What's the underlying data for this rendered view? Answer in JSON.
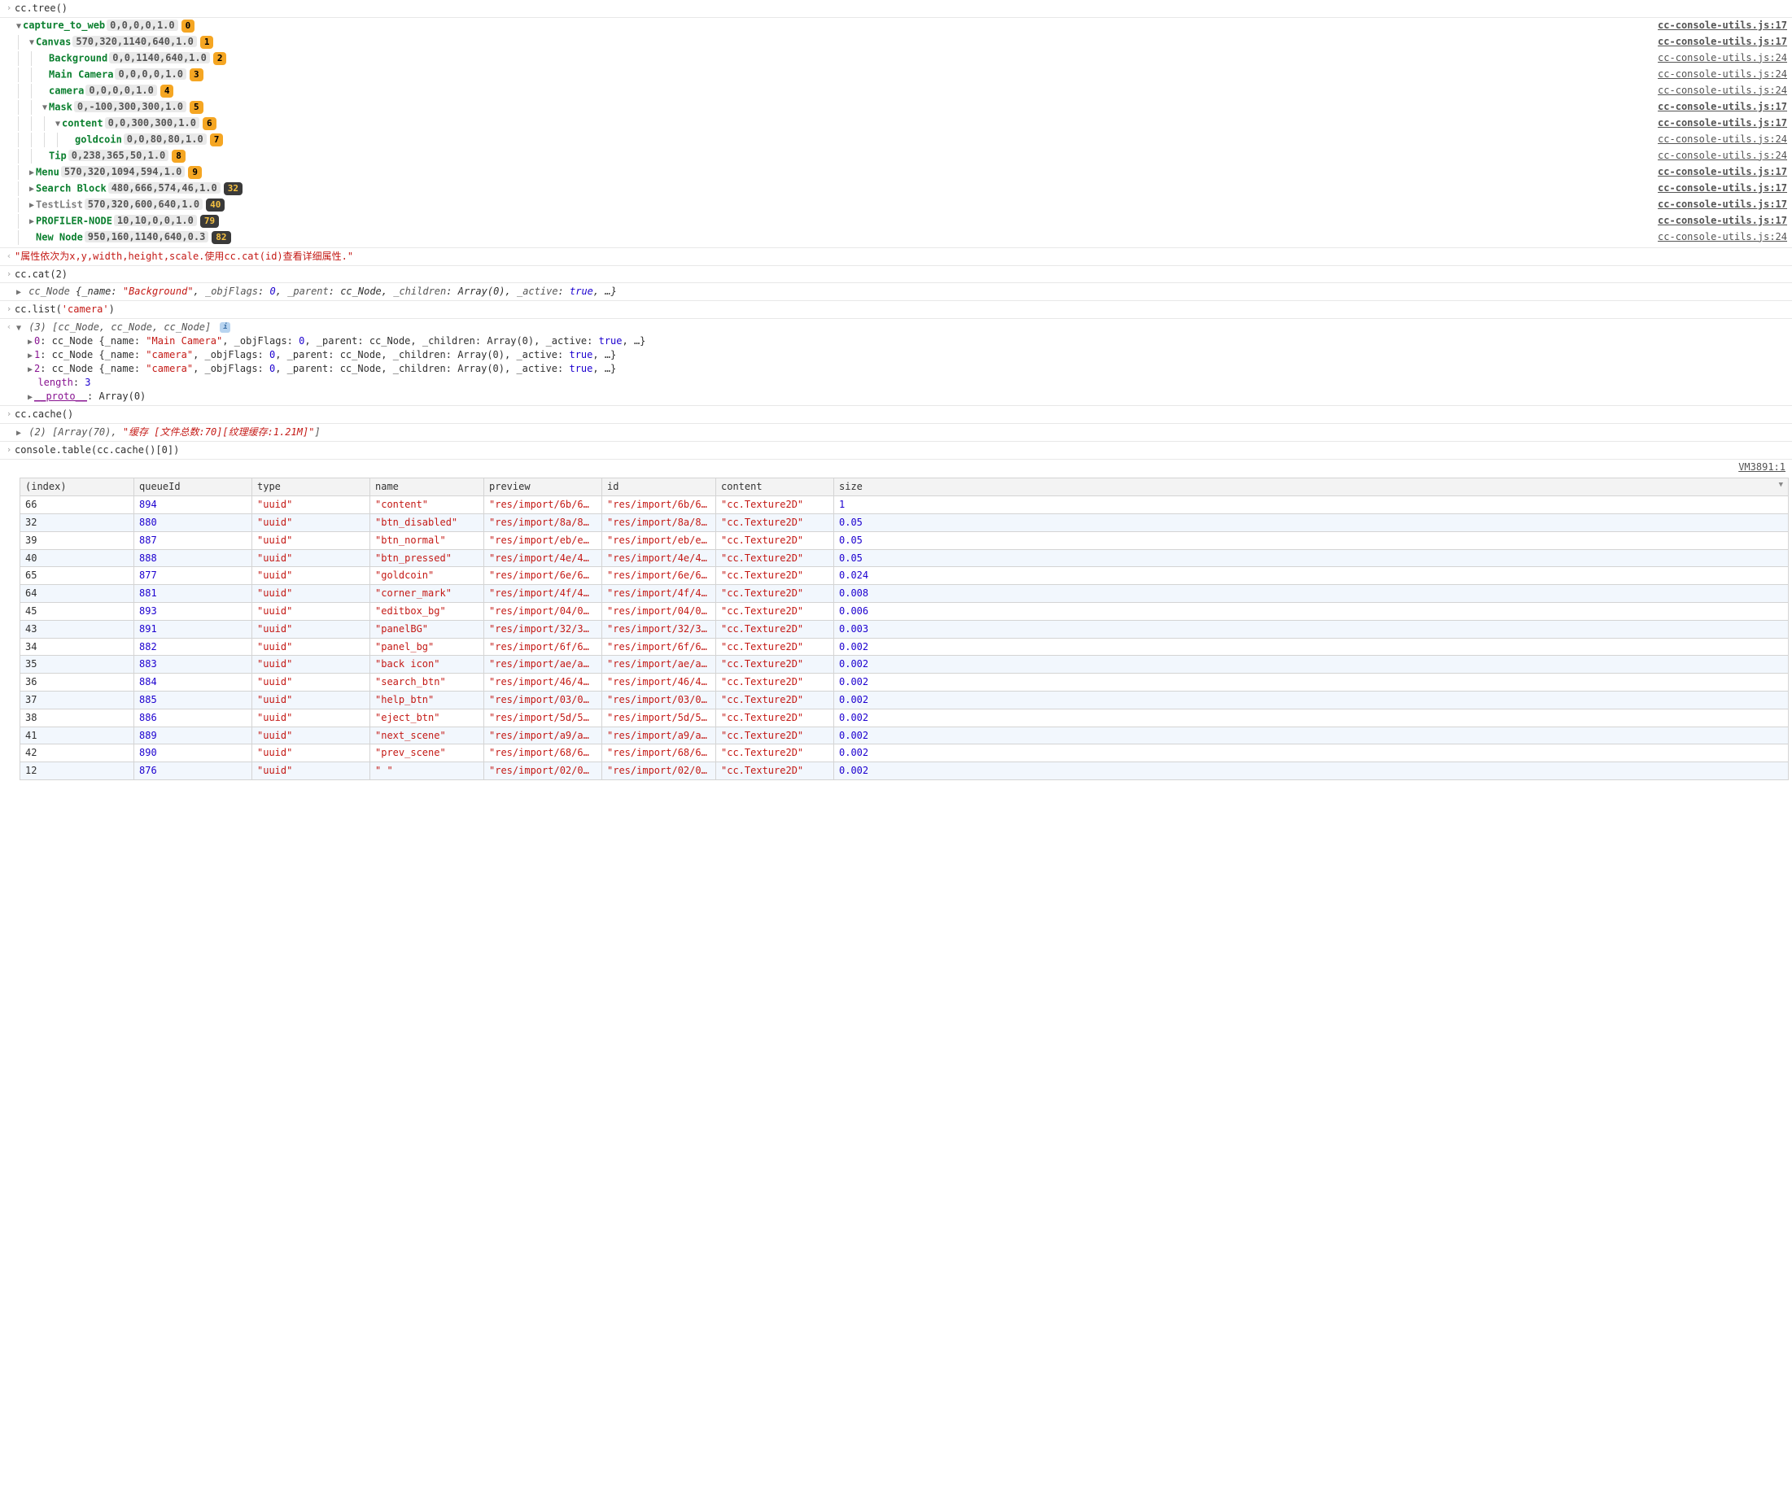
{
  "commands": {
    "tree": "cc.tree()",
    "cat": "cc.cat(2)",
    "list": "cc.list('camera')",
    "cache": "cc.cache()",
    "table": "console.table(cc.cache()[0])"
  },
  "tree_hint": "\"属性依次为x,y,width,height,scale.使用cc.cat(id)查看详细属性.\"",
  "src_links": {
    "bold17": "cc-console-utils.js:17",
    "plain24": "cc-console-utils.js:24"
  },
  "tree_nodes": [
    {
      "depth": 0,
      "tri": "open",
      "name": "capture_to_web",
      "green": true,
      "coords": "0,0,0,0,1.0",
      "badge": "0",
      "src": "bold17",
      "guides": []
    },
    {
      "depth": 1,
      "tri": "open",
      "name": "Canvas",
      "green": true,
      "coords": "570,320,1140,640,1.0",
      "badge": "1",
      "src": "bold17",
      "guides": [
        0
      ]
    },
    {
      "depth": 2,
      "tri": "none",
      "name": "Background",
      "green": true,
      "coords": "0,0,1140,640,1.0",
      "badge": "2",
      "src": "plain24",
      "guides": [
        0,
        1
      ]
    },
    {
      "depth": 2,
      "tri": "none",
      "name": "Main Camera",
      "green": true,
      "coords": "0,0,0,0,1.0",
      "badge": "3",
      "src": "plain24",
      "guides": [
        0,
        1
      ]
    },
    {
      "depth": 2,
      "tri": "none",
      "name": "camera",
      "green": true,
      "coords": "0,0,0,0,1.0",
      "badge": "4",
      "src": "plain24",
      "guides": [
        0,
        1
      ]
    },
    {
      "depth": 2,
      "tri": "open",
      "name": "Mask",
      "green": true,
      "coords": "0,-100,300,300,1.0",
      "badge": "5",
      "src": "bold17",
      "guides": [
        0,
        1
      ]
    },
    {
      "depth": 3,
      "tri": "open",
      "name": "content",
      "green": true,
      "coords": "0,0,300,300,1.0",
      "badge": "6",
      "src": "bold17",
      "guides": [
        0,
        1,
        2
      ]
    },
    {
      "depth": 4,
      "tri": "none",
      "name": "goldcoin",
      "green": true,
      "coords": "0,0,80,80,1.0",
      "badge": "7",
      "src": "plain24",
      "guides": [
        0,
        1,
        2,
        3
      ]
    },
    {
      "depth": 2,
      "tri": "none",
      "name": "Tip",
      "green": true,
      "coords": "0,238,365,50,1.0",
      "badge": "8",
      "src": "plain24",
      "guides": [
        0,
        1
      ]
    },
    {
      "depth": 1,
      "tri": "closed",
      "name": "Menu",
      "green": true,
      "coords": "570,320,1094,594,1.0",
      "badge": "9",
      "src": "bold17",
      "guides": [
        0
      ]
    },
    {
      "depth": 1,
      "tri": "closed",
      "name": "Search Block",
      "green": true,
      "coords": "480,666,574,46,1.0",
      "badge": "32",
      "src": "bold17",
      "guides": [
        0
      ]
    },
    {
      "depth": 1,
      "tri": "closed",
      "name": "TestList",
      "green": false,
      "coords": "570,320,600,640,1.0",
      "badge": "40",
      "src": "bold17",
      "guides": [
        0
      ]
    },
    {
      "depth": 1,
      "tri": "closed",
      "name": "PROFILER-NODE",
      "green": true,
      "coords": "10,10,0,0,1.0",
      "badge": "79",
      "src": "bold17",
      "guides": [
        0
      ]
    },
    {
      "depth": 1,
      "tri": "none",
      "name": "New Node",
      "green": true,
      "coords": "950,160,1140,640,0.3",
      "badge": "82",
      "src": "plain24",
      "guides": [
        0
      ]
    }
  ],
  "cat_result": {
    "prefix": "cc_Node",
    "body_pre": "{_name: ",
    "name": "\"Background\"",
    "rest": ", _objFlags: 0, _parent: cc_Node, _children: Array(0), _active: true, …}"
  },
  "list_header": "(3) [cc_Node, cc_Node, cc_Node]",
  "list_items": [
    {
      "idx": "0",
      "name": "\"Main Camera\""
    },
    {
      "idx": "1",
      "name": "\"camera\""
    },
    {
      "idx": "2",
      "name": "\"camera\""
    }
  ],
  "list_item_template": {
    "pre": ": cc_Node {_name: ",
    "post1": ", _objFlags: ",
    "flags": "0",
    "post2": ", _parent: cc_Node, _children: Array(0), _active: ",
    "active": "true",
    "post3": ", …}"
  },
  "list_length_label": "length",
  "list_length_value": "3",
  "list_proto_label": "__proto__",
  "list_proto_value": ": Array(0)",
  "cache_result_pre": "(2) [Array(70), ",
  "cache_result_str": "\"缓存 [文件总数:70][纹理缓存:1.21M]\"",
  "cache_result_post": "]",
  "vm_link": "VM3891:1",
  "table": {
    "columns": [
      "(index)",
      "queueId",
      "type",
      "name",
      "preview",
      "id",
      "content",
      "size"
    ],
    "col_widths": [
      "140px",
      "145px",
      "145px",
      "140px",
      "145px",
      "140px",
      "145px",
      "auto"
    ],
    "sort_col": 7,
    "rows": [
      [
        "66",
        "894",
        "\"uuid\"",
        "\"content\"",
        "\"res/import/6b/6…",
        "\"res/import/6b/6…",
        "\"cc.Texture2D\"",
        "1"
      ],
      [
        "32",
        "880",
        "\"uuid\"",
        "\"btn_disabled\"",
        "\"res/import/8a/8…",
        "\"res/import/8a/8…",
        "\"cc.Texture2D\"",
        "0.05"
      ],
      [
        "39",
        "887",
        "\"uuid\"",
        "\"btn_normal\"",
        "\"res/import/eb/e…",
        "\"res/import/eb/e…",
        "\"cc.Texture2D\"",
        "0.05"
      ],
      [
        "40",
        "888",
        "\"uuid\"",
        "\"btn_pressed\"",
        "\"res/import/4e/4…",
        "\"res/import/4e/4…",
        "\"cc.Texture2D\"",
        "0.05"
      ],
      [
        "65",
        "877",
        "\"uuid\"",
        "\"goldcoin\"",
        "\"res/import/6e/6…",
        "\"res/import/6e/6…",
        "\"cc.Texture2D\"",
        "0.024"
      ],
      [
        "64",
        "881",
        "\"uuid\"",
        "\"corner_mark\"",
        "\"res/import/4f/4…",
        "\"res/import/4f/4…",
        "\"cc.Texture2D\"",
        "0.008"
      ],
      [
        "45",
        "893",
        "\"uuid\"",
        "\"editbox_bg\"",
        "\"res/import/04/0…",
        "\"res/import/04/0…",
        "\"cc.Texture2D\"",
        "0.006"
      ],
      [
        "43",
        "891",
        "\"uuid\"",
        "\"panelBG\"",
        "\"res/import/32/3…",
        "\"res/import/32/3…",
        "\"cc.Texture2D\"",
        "0.003"
      ],
      [
        "34",
        "882",
        "\"uuid\"",
        "\"panel_bg\"",
        "\"res/import/6f/6…",
        "\"res/import/6f/6…",
        "\"cc.Texture2D\"",
        "0.002"
      ],
      [
        "35",
        "883",
        "\"uuid\"",
        "\"back icon\"",
        "\"res/import/ae/a…",
        "\"res/import/ae/a…",
        "\"cc.Texture2D\"",
        "0.002"
      ],
      [
        "36",
        "884",
        "\"uuid\"",
        "\"search_btn\"",
        "\"res/import/46/4…",
        "\"res/import/46/4…",
        "\"cc.Texture2D\"",
        "0.002"
      ],
      [
        "37",
        "885",
        "\"uuid\"",
        "\"help_btn\"",
        "\"res/import/03/0…",
        "\"res/import/03/0…",
        "\"cc.Texture2D\"",
        "0.002"
      ],
      [
        "38",
        "886",
        "\"uuid\"",
        "\"eject_btn\"",
        "\"res/import/5d/5…",
        "\"res/import/5d/5…",
        "\"cc.Texture2D\"",
        "0.002"
      ],
      [
        "41",
        "889",
        "\"uuid\"",
        "\"next_scene\"",
        "\"res/import/a9/a…",
        "\"res/import/a9/a…",
        "\"cc.Texture2D\"",
        "0.002"
      ],
      [
        "42",
        "890",
        "\"uuid\"",
        "\"prev_scene\"",
        "\"res/import/68/6…",
        "\"res/import/68/6…",
        "\"cc.Texture2D\"",
        "0.002"
      ],
      [
        "12",
        "876",
        "\"uuid\"",
        "\" \"",
        "\"res/import/02/0…",
        "\"res/import/02/0…",
        "\"cc.Texture2D\"",
        "0.002"
      ]
    ]
  },
  "colors": {
    "green": "#0a7f2e",
    "string": "#c41a16",
    "number": "#1c00cf",
    "purple": "#881391",
    "badge_bg": "#f5a623",
    "coords_bg": "#e9e9e9"
  }
}
